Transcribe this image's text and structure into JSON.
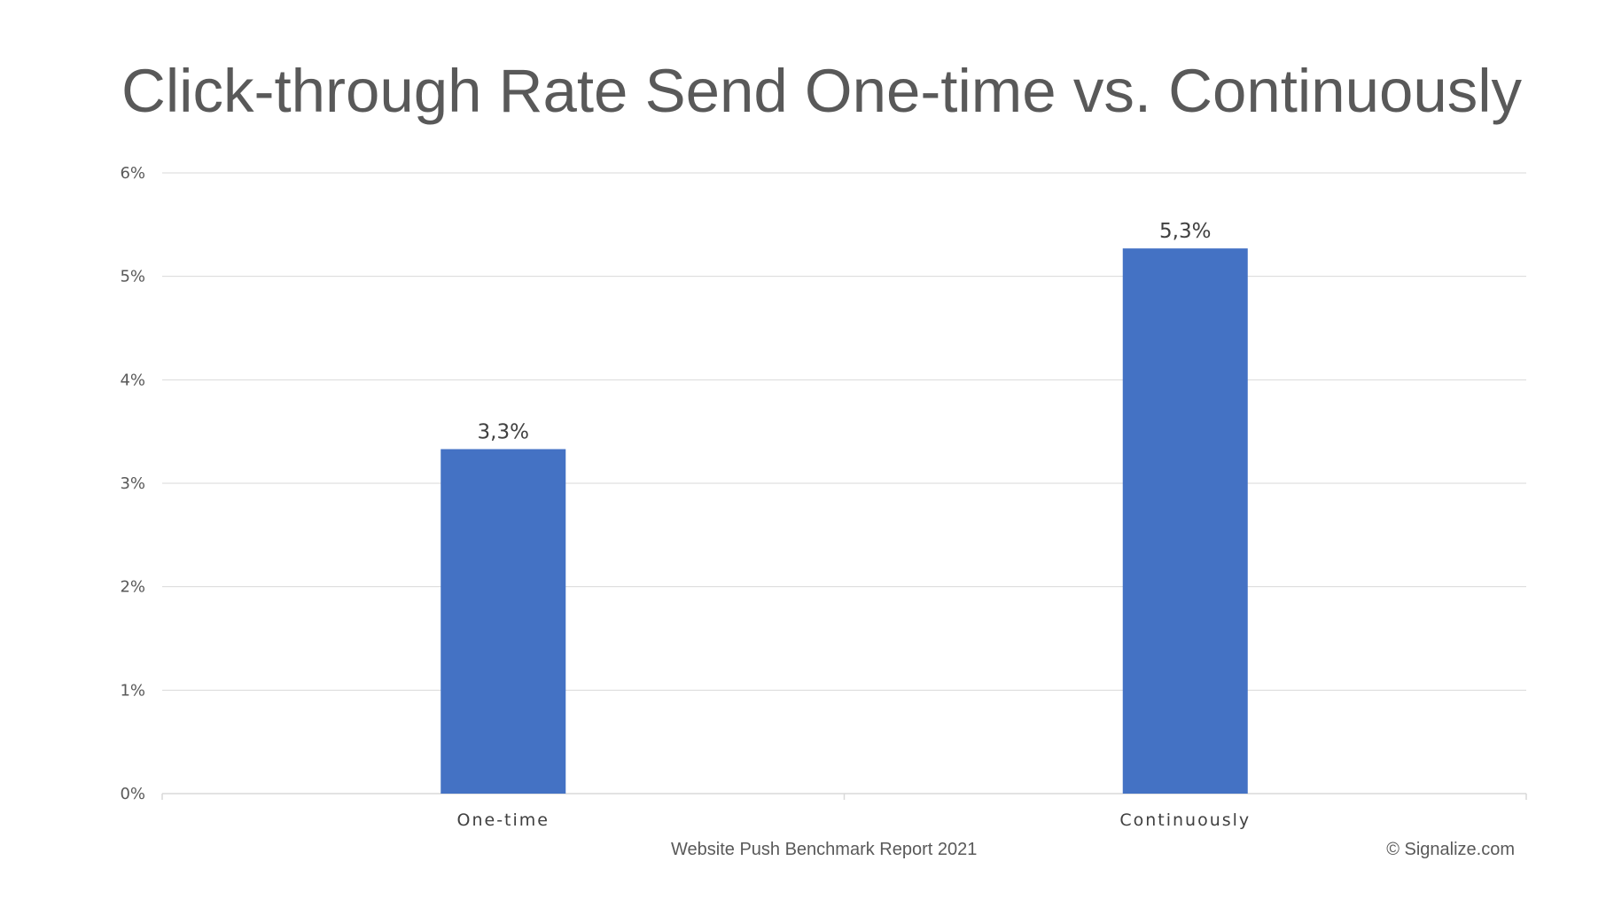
{
  "title": "Click-through Rate Send One-time vs. Continuously",
  "footer": {
    "source": "Website Push Benchmark Report 2021",
    "copyright": "© Signalize.com"
  },
  "colors": {
    "bar": "#4472C4",
    "gridline": "#D9D9D9",
    "text": "#595959"
  },
  "chart_data": {
    "type": "bar",
    "title": "",
    "xlabel": "",
    "ylabel": "",
    "categories": [
      "One-time",
      "Continuously"
    ],
    "values": [
      3.33,
      5.27
    ],
    "data_labels": [
      "3,3%",
      "5,3%"
    ],
    "y_ticks": [
      0,
      1,
      2,
      3,
      4,
      5,
      6
    ],
    "y_tick_labels": [
      "0%",
      "1%",
      "2%",
      "3%",
      "4%",
      "5%",
      "6%"
    ],
    "ylim": [
      0,
      6
    ],
    "grid": true,
    "legend": "none"
  }
}
